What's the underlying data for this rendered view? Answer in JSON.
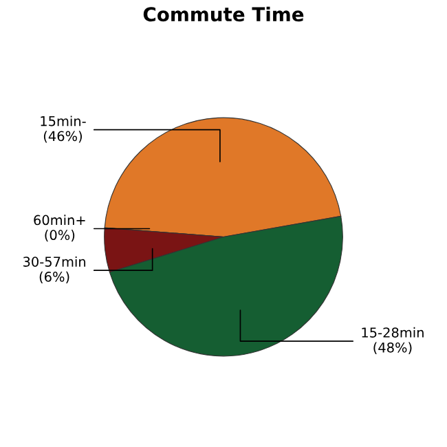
{
  "chart_data": {
    "type": "pie",
    "title": "Commute Time",
    "categories": [
      "15min-",
      "60min+",
      "30-57min",
      "15-28min"
    ],
    "values": [
      46,
      0,
      6,
      48
    ],
    "value_labels": [
      "(46%)",
      "(0%)",
      "(6%)",
      "(48%)"
    ],
    "colors": [
      "#e07828",
      "#7a1414",
      "#7a1414",
      "#155e32"
    ]
  }
}
